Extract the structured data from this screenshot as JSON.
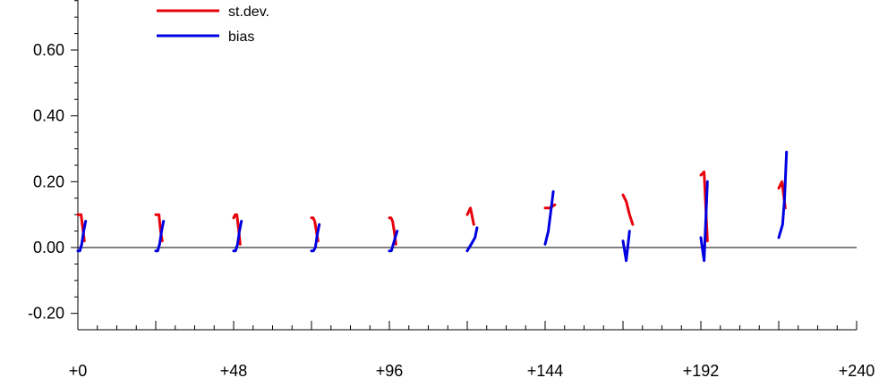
{
  "chart_data": {
    "type": "line",
    "title": "",
    "xlabel": "",
    "ylabel": "",
    "xlim": [
      0,
      240
    ],
    "ylim": [
      -0.25,
      0.75
    ],
    "x_ticks": [
      0,
      48,
      96,
      144,
      192,
      240
    ],
    "x_tick_labels": [
      "+0",
      "+48",
      "+96",
      "+144",
      "+192",
      "+240"
    ],
    "y_ticks": [
      -0.2,
      0.0,
      0.2,
      0.4,
      0.6
    ],
    "y_tick_labels": [
      "-0.20",
      "0.00",
      "0.20",
      "0.40",
      "0.60"
    ],
    "zero_line": true,
    "grid": false,
    "legend_position": "top-left",
    "series": [
      {
        "name": "st.dev.",
        "color": "#e8000b",
        "segments": [
          {
            "x": [
              0.0,
              0.5,
              1.0,
              1.5,
              2.0
            ],
            "y": [
              0.1,
              0.1,
              0.1,
              0.06,
              0.02
            ]
          },
          {
            "x": [
              24.0,
              24.5,
              25.0,
              25.5,
              26.0
            ],
            "y": [
              0.1,
              0.1,
              0.1,
              0.05,
              0.02
            ]
          },
          {
            "x": [
              48.0,
              48.5,
              49.0,
              49.5,
              50.0
            ],
            "y": [
              0.09,
              0.1,
              0.1,
              0.06,
              0.01
            ]
          },
          {
            "x": [
              72.0,
              72.5,
              73.0,
              73.5,
              74.0
            ],
            "y": [
              0.09,
              0.09,
              0.08,
              0.05,
              0.02
            ]
          },
          {
            "x": [
              96.0,
              96.5,
              97.0,
              97.5,
              98.0
            ],
            "y": [
              0.09,
              0.09,
              0.08,
              0.05,
              0.01
            ]
          },
          {
            "x": [
              120.0,
              121.0,
              122.0
            ],
            "y": [
              0.1,
              0.12,
              0.07
            ]
          },
          {
            "x": [
              144.0,
              145.5,
              147.0
            ],
            "y": [
              0.12,
              0.12,
              0.13
            ]
          },
          {
            "x": [
              168.0,
              169.0,
              170.0,
              171.0
            ],
            "y": [
              0.16,
              0.14,
              0.1,
              0.07
            ]
          },
          {
            "x": [
              192.0,
              193.0,
              194.0
            ],
            "y": [
              0.22,
              0.23,
              0.02
            ]
          },
          {
            "x": [
              216.0,
              217.0,
              218.0
            ],
            "y": [
              0.18,
              0.2,
              0.12
            ]
          }
        ]
      },
      {
        "name": "bias",
        "color": "#0000e0",
        "segments": [
          {
            "x": [
              0.0,
              0.6,
              1.2,
              1.8,
              2.4
            ],
            "y": [
              -0.01,
              -0.01,
              0.01,
              0.05,
              0.08
            ]
          },
          {
            "x": [
              24.0,
              24.6,
              25.2,
              25.8,
              26.4
            ],
            "y": [
              -0.01,
              -0.01,
              0.01,
              0.05,
              0.08
            ]
          },
          {
            "x": [
              48.0,
              48.6,
              49.2,
              49.8,
              50.4
            ],
            "y": [
              -0.01,
              -0.01,
              0.01,
              0.05,
              0.08
            ]
          },
          {
            "x": [
              72.0,
              72.6,
              73.2,
              73.8,
              74.4
            ],
            "y": [
              -0.01,
              -0.01,
              0.0,
              0.04,
              0.07
            ]
          },
          {
            "x": [
              96.0,
              96.6,
              97.2,
              97.8,
              98.4
            ],
            "y": [
              -0.01,
              -0.01,
              0.01,
              0.03,
              0.05
            ]
          },
          {
            "x": [
              120.0,
              121.2,
              122.4,
              123.0
            ],
            "y": [
              -0.01,
              0.01,
              0.03,
              0.06
            ]
          },
          {
            "x": [
              144.0,
              145.0,
              146.0,
              146.5
            ],
            "y": [
              0.01,
              0.05,
              0.13,
              0.17
            ]
          },
          {
            "x": [
              168.0,
              169.0,
              170.0
            ],
            "y": [
              0.02,
              -0.04,
              0.05
            ]
          },
          {
            "x": [
              192.0,
              193.0,
              194.0
            ],
            "y": [
              0.03,
              -0.04,
              0.2
            ]
          },
          {
            "x": [
              216.0,
              217.2,
              217.8,
              218.4
            ],
            "y": [
              0.03,
              0.07,
              0.15,
              0.29
            ]
          }
        ]
      }
    ]
  }
}
